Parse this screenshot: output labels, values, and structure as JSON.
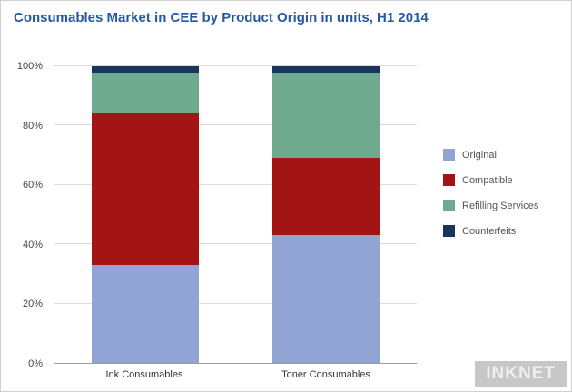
{
  "title": "Consumables Market in CEE by Product Origin in units, H1 2014",
  "watermark": "INKNET",
  "colors": {
    "title": "#2458a6",
    "original": "#92a4d4",
    "compatible": "#a31414",
    "refilling": "#6fa98e",
    "counterfeits": "#17365d"
  },
  "chart_data": {
    "type": "bar",
    "stacked": true,
    "percent_stacked": true,
    "categories": [
      "Ink Consumables",
      "Toner Consumables"
    ],
    "series": [
      {
        "name": "Original",
        "color": "#92a4d4",
        "values": [
          33,
          43
        ]
      },
      {
        "name": "Compatible",
        "color": "#a31414",
        "values": [
          51,
          26
        ]
      },
      {
        "name": "Refilling Services",
        "color": "#6fa98e",
        "values": [
          14,
          29
        ]
      },
      {
        "name": "Counterfeits",
        "color": "#17365d",
        "values": [
          2,
          2
        ]
      }
    ],
    "title": "Consumables Market in CEE by Product Origin in units, H1 2014",
    "xlabel": "",
    "ylabel": "",
    "ylim": [
      0,
      100
    ],
    "yticks": [
      "0%",
      "20%",
      "40%",
      "60%",
      "80%",
      "100%"
    ],
    "grid": true,
    "legend_position": "right"
  }
}
